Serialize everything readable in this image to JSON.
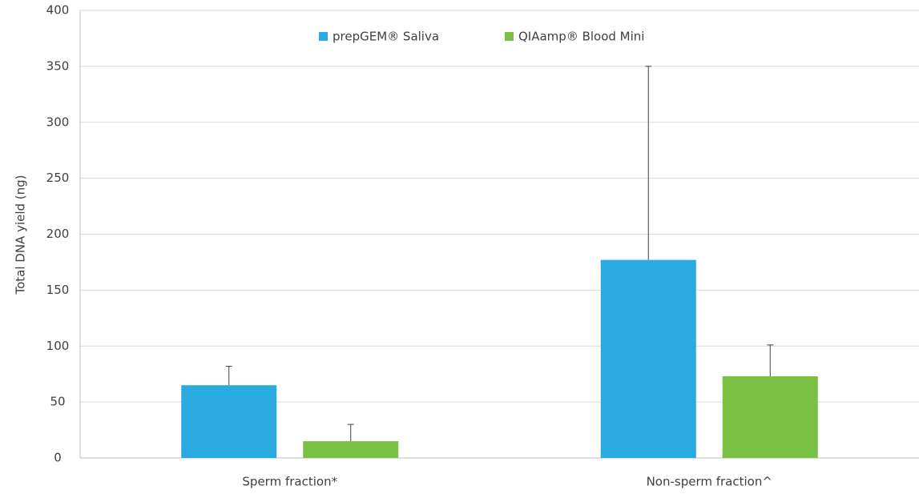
{
  "chart_data": {
    "type": "bar",
    "y_label": "Total DNA yield (ng)",
    "categories": [
      "Sperm fraction*",
      "Non-sperm fraction^"
    ],
    "series": [
      {
        "name": "prepGEM® Saliva",
        "color": "#29abe2",
        "values": [
          65,
          177
        ],
        "errors": [
          17,
          173
        ]
      },
      {
        "name": "QIAamp® Blood Mini",
        "color": "#7ac143",
        "values": [
          15,
          73
        ],
        "errors": [
          15,
          28
        ]
      }
    ],
    "ylim": [
      0,
      400
    ],
    "yticks": [
      0,
      50,
      100,
      150,
      200,
      250,
      300,
      350,
      400
    ],
    "grid": true
  }
}
